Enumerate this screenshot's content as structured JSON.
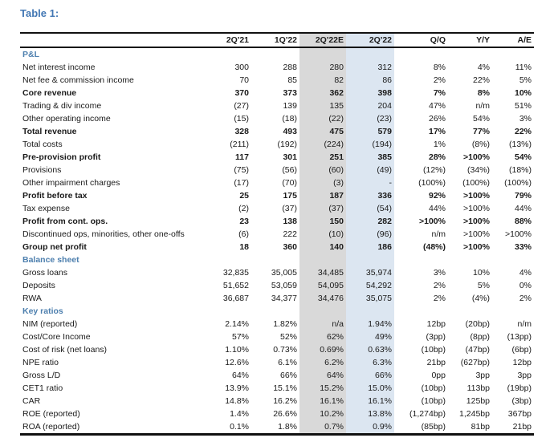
{
  "title": "Table 1:",
  "colors": {
    "accent_blue": "#4277b4",
    "section_blue": "#4d7fae",
    "band_gray": "#d9d9d9",
    "band_blue": "#dce6f1"
  },
  "table": {
    "columns": [
      "",
      "2Q'21",
      "1Q'22",
      "2Q'22E",
      "2Q'22",
      "Q/Q",
      "Y/Y",
      "A/E"
    ],
    "band_columns": {
      "gray_index": 3,
      "blue_index": 4
    },
    "sections": [
      {
        "header": "P&L",
        "rows": [
          {
            "label": "Net interest income",
            "bold": false,
            "values": [
              "300",
              "288",
              "280",
              "312",
              "8%",
              "4%",
              "11%"
            ]
          },
          {
            "label": "Net fee & commission income",
            "bold": false,
            "values": [
              "70",
              "85",
              "82",
              "86",
              "2%",
              "22%",
              "5%"
            ]
          },
          {
            "label": "Core revenue",
            "bold": true,
            "values": [
              "370",
              "373",
              "362",
              "398",
              "7%",
              "8%",
              "10%"
            ]
          },
          {
            "label": "Trading & div income",
            "bold": false,
            "values": [
              "(27)",
              "139",
              "135",
              "204",
              "47%",
              "n/m",
              "51%"
            ]
          },
          {
            "label": "Other operating income",
            "bold": false,
            "values": [
              "(15)",
              "(18)",
              "(22)",
              "(23)",
              "26%",
              "54%",
              "3%"
            ]
          },
          {
            "label": "Total revenue",
            "bold": true,
            "values": [
              "328",
              "493",
              "475",
              "579",
              "17%",
              "77%",
              "22%"
            ]
          },
          {
            "label": "Total costs",
            "bold": false,
            "values": [
              "(211)",
              "(192)",
              "(224)",
              "(194)",
              "1%",
              "(8%)",
              "(13%)"
            ]
          },
          {
            "label": "Pre-provision profit",
            "bold": true,
            "values": [
              "117",
              "301",
              "251",
              "385",
              "28%",
              ">100%",
              "54%"
            ]
          },
          {
            "label": "Provisions",
            "bold": false,
            "values": [
              "(75)",
              "(56)",
              "(60)",
              "(49)",
              "(12%)",
              "(34%)",
              "(18%)"
            ]
          },
          {
            "label": "Other impairment charges",
            "bold": false,
            "values": [
              "(17)",
              "(70)",
              "(3)",
              "-",
              "(100%)",
              "(100%)",
              "(100%)"
            ]
          },
          {
            "label": "Profit before tax",
            "bold": true,
            "values": [
              "25",
              "175",
              "187",
              "336",
              "92%",
              ">100%",
              "79%"
            ]
          },
          {
            "label": "Tax expense",
            "bold": false,
            "values": [
              "(2)",
              "(37)",
              "(37)",
              "(54)",
              "44%",
              ">100%",
              "44%"
            ]
          },
          {
            "label": "Profit from cont. ops.",
            "bold": true,
            "values": [
              "23",
              "138",
              "150",
              "282",
              ">100%",
              ">100%",
              "88%"
            ]
          },
          {
            "label": "Discontinued ops, minorities, other one-offs",
            "bold": false,
            "values": [
              "(6)",
              "222",
              "(10)",
              "(96)",
              "n/m",
              ">100%",
              ">100%"
            ]
          },
          {
            "label": "Group net profit",
            "bold": true,
            "values": [
              "18",
              "360",
              "140",
              "186",
              "(48%)",
              ">100%",
              "33%"
            ]
          }
        ]
      },
      {
        "header": "Balance sheet",
        "rows": [
          {
            "label": "Gross loans",
            "bold": false,
            "values": [
              "32,835",
              "35,005",
              "34,485",
              "35,974",
              "3%",
              "10%",
              "4%"
            ]
          },
          {
            "label": "Deposits",
            "bold": false,
            "values": [
              "51,652",
              "53,059",
              "54,095",
              "54,292",
              "2%",
              "5%",
              "0%"
            ]
          },
          {
            "label": "RWA",
            "bold": false,
            "values": [
              "36,687",
              "34,377",
              "34,476",
              "35,075",
              "2%",
              "(4%)",
              "2%"
            ]
          }
        ]
      },
      {
        "header": "Key ratios",
        "rows": [
          {
            "label": "NIM (reported)",
            "bold": false,
            "values": [
              "2.14%",
              "1.82%",
              "n/a",
              "1.94%",
              "12bp",
              "(20bp)",
              "n/m"
            ]
          },
          {
            "label": "Cost/Core Income",
            "bold": false,
            "values": [
              "57%",
              "52%",
              "62%",
              "49%",
              "(3pp)",
              "(8pp)",
              "(13pp)"
            ]
          },
          {
            "label": "Cost of risk (net loans)",
            "bold": false,
            "values": [
              "1.10%",
              "0.73%",
              "0.69%",
              "0.63%",
              "(10bp)",
              "(47bp)",
              "(6bp)"
            ]
          },
          {
            "label": "NPE ratio",
            "bold": false,
            "values": [
              "12.6%",
              "6.1%",
              "6.2%",
              "6.3%",
              "21bp",
              "(627bp)",
              "12bp"
            ]
          },
          {
            "label": "Gross L/D",
            "bold": false,
            "values": [
              "64%",
              "66%",
              "64%",
              "66%",
              "0pp",
              "3pp",
              "3pp"
            ]
          },
          {
            "label": "CET1 ratio",
            "bold": false,
            "values": [
              "13.9%",
              "15.1%",
              "15.2%",
              "15.0%",
              "(10bp)",
              "113bp",
              "(19bp)"
            ]
          },
          {
            "label": "CAR",
            "bold": false,
            "values": [
              "14.8%",
              "16.2%",
              "16.1%",
              "16.1%",
              "(10bp)",
              "125bp",
              "(3bp)"
            ]
          },
          {
            "label": "ROE (reported)",
            "bold": false,
            "values": [
              "1.4%",
              "26.6%",
              "10.2%",
              "13.8%",
              "(1,274bp)",
              "1,245bp",
              "367bp"
            ]
          },
          {
            "label": "ROA (reported)",
            "bold": false,
            "values": [
              "0.1%",
              "1.8%",
              "0.7%",
              "0.9%",
              "(85bp)",
              "81bp",
              "21bp"
            ]
          }
        ]
      }
    ]
  }
}
